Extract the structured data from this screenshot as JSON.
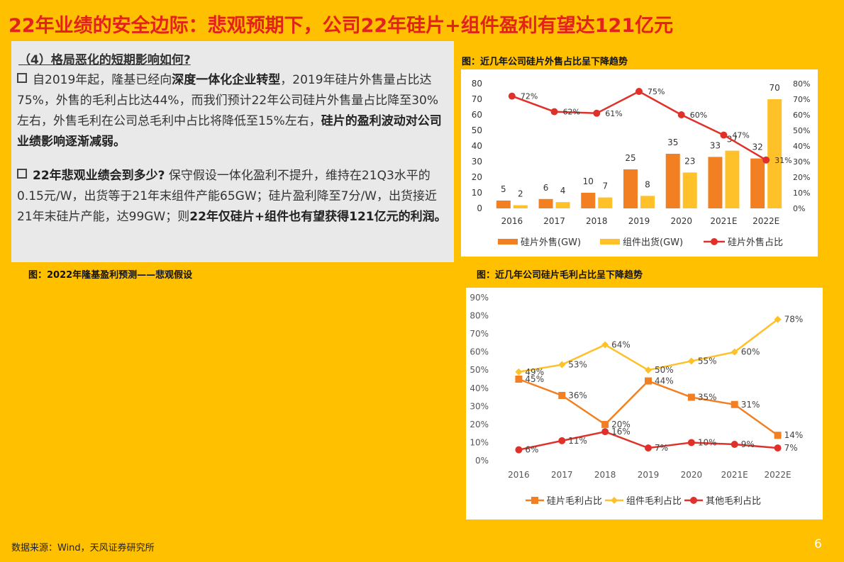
{
  "title": "22年业绩的安全边际：悲观预期下，公司22年硅片+组件盈利有望达121亿元",
  "text_section": {
    "subheading": "（4）格局恶化的短期影响如何?",
    "para1": {
      "t1": "自2019年起，隆基已经向",
      "b1": "深度一体化企业转型",
      "t2": "，2019年硅片外售量占比达75%，外售的毛利占比达44%，而我们预计22年公司硅片外售量占比降至30%左右，外售毛利在公司总毛利中占比将降低至15%左右，",
      "b2": "硅片的盈利波动对公司业绩影响逐渐减弱。"
    },
    "para2": {
      "b1": "22年悲观业绩会到多少?",
      "t1": " 保守假设一体化盈利不提升，维持在21Q3水平的0.15元/W，出货等于21年末组件产能65GW；硅片盈利降至7分/W，出货接近21年末硅片产能，达99GW；则",
      "b2": "22年仅硅片+组件也有望获得121亿元的利润。"
    }
  },
  "captions": {
    "chart1": "图：近几年公司硅片外售占比呈下降趋势",
    "table": "图：2022年隆基盈利预测——悲观假设",
    "chart2": "图：近几年公司硅片毛利占比呈下降趋势"
  },
  "source_note": "数据来源：Wind，天风证券研究所",
  "page_number": "6",
  "colors": {
    "background": "#FFC000",
    "title": "#E2231A",
    "orange": "#F28022",
    "gold": "#FFC12A",
    "red": "#E0302A"
  },
  "chart_data": [
    {
      "type": "bar",
      "categories": [
        "2016",
        "2017",
        "2018",
        "2019",
        "2020",
        "2021E",
        "2022E"
      ],
      "series": [
        {
          "name": "硅片外售(GW)",
          "values": [
            5,
            6,
            10,
            25,
            35,
            33,
            32
          ],
          "labels": [
            "5",
            "6",
            "10",
            "25",
            "35",
            "33",
            "32"
          ],
          "color": "#F28022"
        },
        {
          "name": "组件出货(GW)",
          "values": [
            2,
            4,
            7,
            8,
            23,
            37,
            70
          ],
          "labels": [
            "2",
            "4",
            "7",
            "8",
            "23",
            "37",
            "70"
          ],
          "color": "#FFC12A"
        },
        {
          "name": "硅片外售占比",
          "type": "line",
          "axis": "right",
          "values": [
            72,
            62,
            61,
            75,
            60,
            47,
            31
          ],
          "labels": [
            "72%",
            "62%",
            "61%",
            "75%",
            "60%",
            "47%",
            "31%"
          ],
          "color": "#E0302A"
        }
      ],
      "ylim": [
        0,
        80
      ],
      "yticks": [
        "0",
        "10",
        "20",
        "30",
        "40",
        "50",
        "60",
        "70",
        "80"
      ],
      "y2lim": [
        0,
        80
      ],
      "y2ticks": [
        "0%",
        "10%",
        "20%",
        "30%",
        "40%",
        "50%",
        "60%",
        "70%",
        "80%"
      ],
      "legend": "bottom"
    },
    {
      "type": "line",
      "categories": [
        "2016",
        "2017",
        "2018",
        "2019",
        "2020",
        "2021E",
        "2022E"
      ],
      "series": [
        {
          "name": "硅片毛利占比",
          "values": [
            45,
            36,
            20,
            44,
            35,
            31,
            14
          ],
          "labels": [
            "45%",
            "36%",
            "20%",
            "44%",
            "35%",
            "31%",
            "14%"
          ],
          "color": "#F28022"
        },
        {
          "name": "组件毛利占比",
          "values": [
            49,
            53,
            64,
            50,
            55,
            60,
            78
          ],
          "labels": [
            "49%",
            "53%",
            "64%",
            "50%",
            "55%",
            "60%",
            "78%"
          ],
          "color": "#FFC12A"
        },
        {
          "name": "其他毛利占比",
          "values": [
            6,
            11,
            16,
            7,
            10,
            9,
            7
          ],
          "labels": [
            "6%",
            "11%",
            "16%",
            "7%",
            "10%",
            "9%",
            "7%"
          ],
          "color": "#E0302A"
        }
      ],
      "ylim": [
        0,
        90
      ],
      "yticks": [
        "0%",
        "10%",
        "20%",
        "30%",
        "40%",
        "50%",
        "60%",
        "70%",
        "80%",
        "90%"
      ],
      "legend": "bottom"
    }
  ]
}
